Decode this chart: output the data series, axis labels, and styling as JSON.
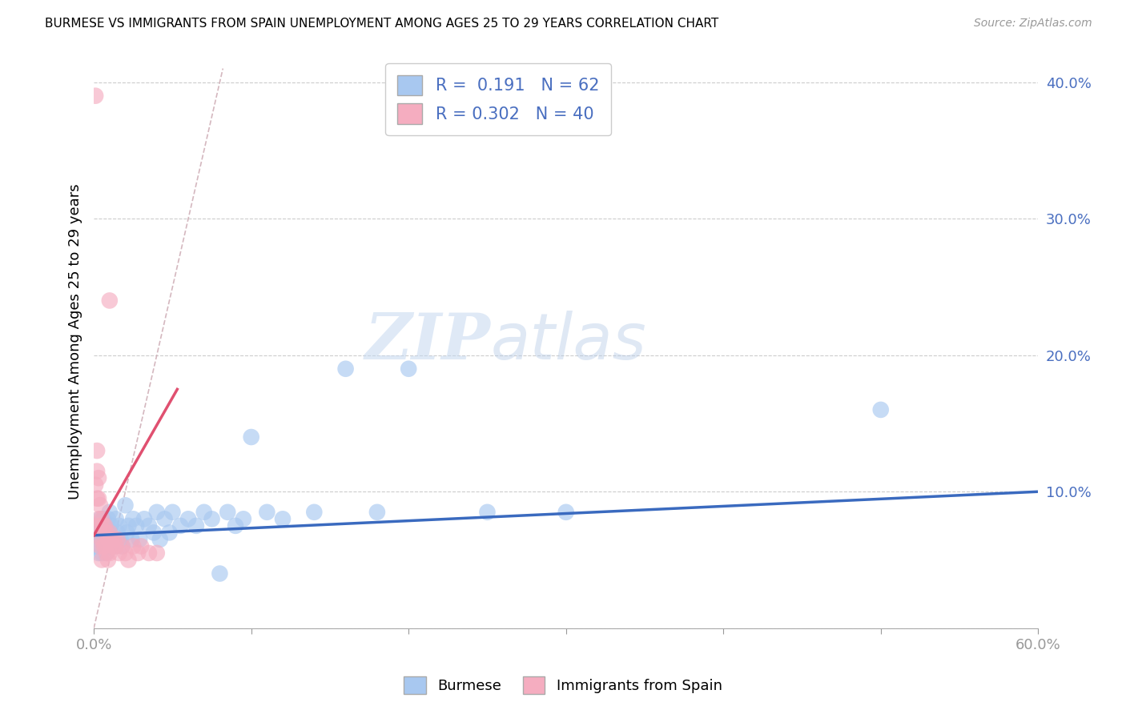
{
  "title": "BURMESE VS IMMIGRANTS FROM SPAIN UNEMPLOYMENT AMONG AGES 25 TO 29 YEARS CORRELATION CHART",
  "source": "Source: ZipAtlas.com",
  "ylabel": "Unemployment Among Ages 25 to 29 years",
  "legend_label1": "Burmese",
  "legend_label2": "Immigrants from Spain",
  "R1": 0.191,
  "N1": 62,
  "R2": 0.302,
  "N2": 40,
  "color1": "#a8c8f0",
  "color2": "#f5adc0",
  "trendline1_color": "#3a6abf",
  "trendline2_color": "#e05070",
  "refline_color": "#d0b0b8",
  "xmin": 0.0,
  "xmax": 0.6,
  "ymin": 0.0,
  "ymax": 0.42,
  "watermark_zip": "ZIP",
  "watermark_atlas": "atlas",
  "burmese_x": [
    0.001,
    0.001,
    0.002,
    0.003,
    0.003,
    0.004,
    0.004,
    0.005,
    0.005,
    0.005,
    0.006,
    0.006,
    0.007,
    0.007,
    0.008,
    0.008,
    0.009,
    0.009,
    0.01,
    0.01,
    0.011,
    0.012,
    0.013,
    0.014,
    0.015,
    0.016,
    0.017,
    0.018,
    0.02,
    0.021,
    0.022,
    0.024,
    0.025,
    0.027,
    0.029,
    0.032,
    0.035,
    0.038,
    0.04,
    0.042,
    0.045,
    0.048,
    0.05,
    0.055,
    0.06,
    0.065,
    0.07,
    0.075,
    0.08,
    0.085,
    0.09,
    0.095,
    0.1,
    0.11,
    0.12,
    0.14,
    0.16,
    0.18,
    0.2,
    0.25,
    0.3,
    0.5
  ],
  "burmese_y": [
    0.075,
    0.06,
    0.07,
    0.065,
    0.055,
    0.08,
    0.07,
    0.075,
    0.065,
    0.055,
    0.08,
    0.065,
    0.075,
    0.06,
    0.07,
    0.055,
    0.08,
    0.065,
    0.085,
    0.07,
    0.075,
    0.065,
    0.06,
    0.08,
    0.07,
    0.075,
    0.065,
    0.06,
    0.09,
    0.07,
    0.075,
    0.065,
    0.08,
    0.075,
    0.065,
    0.08,
    0.075,
    0.07,
    0.085,
    0.065,
    0.08,
    0.07,
    0.085,
    0.075,
    0.08,
    0.075,
    0.085,
    0.08,
    0.04,
    0.085,
    0.075,
    0.08,
    0.14,
    0.085,
    0.08,
    0.085,
    0.19,
    0.085,
    0.19,
    0.085,
    0.085,
    0.16
  ],
  "spain_x": [
    0.001,
    0.001,
    0.001,
    0.002,
    0.002,
    0.002,
    0.003,
    0.003,
    0.003,
    0.004,
    0.004,
    0.004,
    0.005,
    0.005,
    0.005,
    0.006,
    0.006,
    0.007,
    0.007,
    0.008,
    0.008,
    0.009,
    0.009,
    0.01,
    0.01,
    0.011,
    0.012,
    0.013,
    0.014,
    0.015,
    0.016,
    0.018,
    0.02,
    0.022,
    0.025,
    0.028,
    0.03,
    0.035,
    0.04,
    0.01
  ],
  "spain_y": [
    0.39,
    0.105,
    0.075,
    0.13,
    0.115,
    0.095,
    0.11,
    0.095,
    0.08,
    0.09,
    0.075,
    0.06,
    0.08,
    0.065,
    0.05,
    0.075,
    0.06,
    0.075,
    0.06,
    0.07,
    0.055,
    0.065,
    0.05,
    0.07,
    0.055,
    0.065,
    0.06,
    0.065,
    0.06,
    0.065,
    0.055,
    0.06,
    0.055,
    0.05,
    0.06,
    0.055,
    0.06,
    0.055,
    0.055,
    0.24
  ],
  "trendline1_x": [
    0.0,
    0.6
  ],
  "trendline1_y": [
    0.068,
    0.1
  ],
  "trendline2_x": [
    0.0,
    0.053
  ],
  "trendline2_y": [
    0.068,
    0.175
  ]
}
